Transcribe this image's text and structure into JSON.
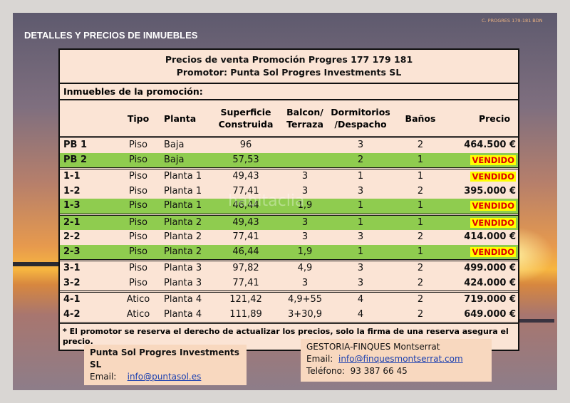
{
  "header": {
    "title": "DETALLES Y PRECIOS DE INMUEBLES",
    "ref": "C. PROGRES 179-181 BDN"
  },
  "table": {
    "title": "Precios de venta Promoción Progres 177 179 181",
    "subtitle": "Promotor: Punta Sol Progres Investments SL",
    "section": "Inmuebles de la promoción:",
    "columns": [
      [
        "Tipo"
      ],
      [
        "Planta"
      ],
      [
        "Superficie",
        "Construida"
      ],
      [
        "Balcon/",
        "Terraza"
      ],
      [
        "Dormitorios",
        "/Despacho"
      ],
      [
        "Baños"
      ],
      [
        "Precio"
      ]
    ],
    "groups": [
      {
        "rows": [
          {
            "color": "#fbe4d5",
            "cells": [
              "PB 1",
              "Piso",
              "Baja",
              "96",
              null,
              "3",
              "2",
              "464.500 €"
            ]
          },
          {
            "color": "#8fcc4f",
            "sold": true,
            "cells": [
              "PB 2",
              "Piso",
              "Baja",
              "57,53",
              null,
              "2",
              "1",
              "VENDIDO"
            ]
          }
        ]
      },
      {
        "rows": [
          {
            "color": "#fbe4d5",
            "sold": true,
            "cells": [
              "1-1",
              "Piso",
              "Planta 1",
              "49,43",
              "3",
              "1",
              "1",
              "VENDIDO"
            ]
          },
          {
            "color": "#fbe4d5",
            "cells": [
              "1-2",
              "Piso",
              "Planta 1",
              "77,41",
              "3",
              "3",
              "2",
              "395.000 €"
            ]
          },
          {
            "color": "#8fcc4f",
            "sold": true,
            "cells": [
              "1-3",
              "Piso",
              "Planta 1",
              "46,44",
              "1,9",
              "1",
              "1",
              "VENDIDO"
            ]
          }
        ]
      },
      {
        "rows": [
          {
            "color": "#8fcc4f",
            "sold": true,
            "cells": [
              "2-1",
              "Piso",
              "Planta 2",
              "49,43",
              "3",
              "1",
              "1",
              "VENDIDO"
            ]
          },
          {
            "color": "#fbe4d5",
            "cells": [
              "2-2",
              "Piso",
              "Planta 2",
              "77,41",
              "3",
              "3",
              "2",
              "414.000 €"
            ]
          },
          {
            "color": "#8fcc4f",
            "sold": true,
            "cells": [
              "2-3",
              "Piso",
              "Planta 2",
              "46,44",
              "1,9",
              "1",
              "1",
              "VENDIDO"
            ]
          }
        ]
      },
      {
        "rows": [
          {
            "color": "#fbe4d5",
            "cells": [
              "3-1",
              "Piso",
              "Planta 3",
              "97,82",
              "4,9",
              "3",
              "2",
              "499.000 €"
            ]
          },
          {
            "color": "#fbe4d5",
            "cells": [
              "3-2",
              "Piso",
              "Planta 3",
              "77,41",
              "3",
              "3",
              "2",
              "424.000 €"
            ]
          }
        ]
      },
      {
        "rows": [
          {
            "color": "#fbe4d5",
            "cells": [
              "4-1",
              "Atico",
              "Planta 4",
              "121,42",
              "4,9+55",
              "4",
              "2",
              "719.000 €"
            ]
          },
          {
            "color": "#fbe4d5",
            "cells": [
              "4-2",
              "Atico",
              "Planta 4",
              "111,89",
              "3+30,9",
              "4",
              "2",
              "649.000 €"
            ]
          }
        ]
      }
    ],
    "footnote": "* El promotor se reserva el derecho de actualizar los precios, solo la firma de una reserva asegura el precio."
  },
  "watermark": "habitaclia",
  "contacts": [
    {
      "name": "Punta Sol Progres Investments SL",
      "email_label": "Email:",
      "email": "info@puntasol.es"
    },
    {
      "name": "GESTORIA-FINQUES Montserrat",
      "email_label": "Email:",
      "email": "info@finquesmontserrat.com",
      "phone_label": "Teléfono:",
      "phone": "93 387 66 45"
    }
  ]
}
